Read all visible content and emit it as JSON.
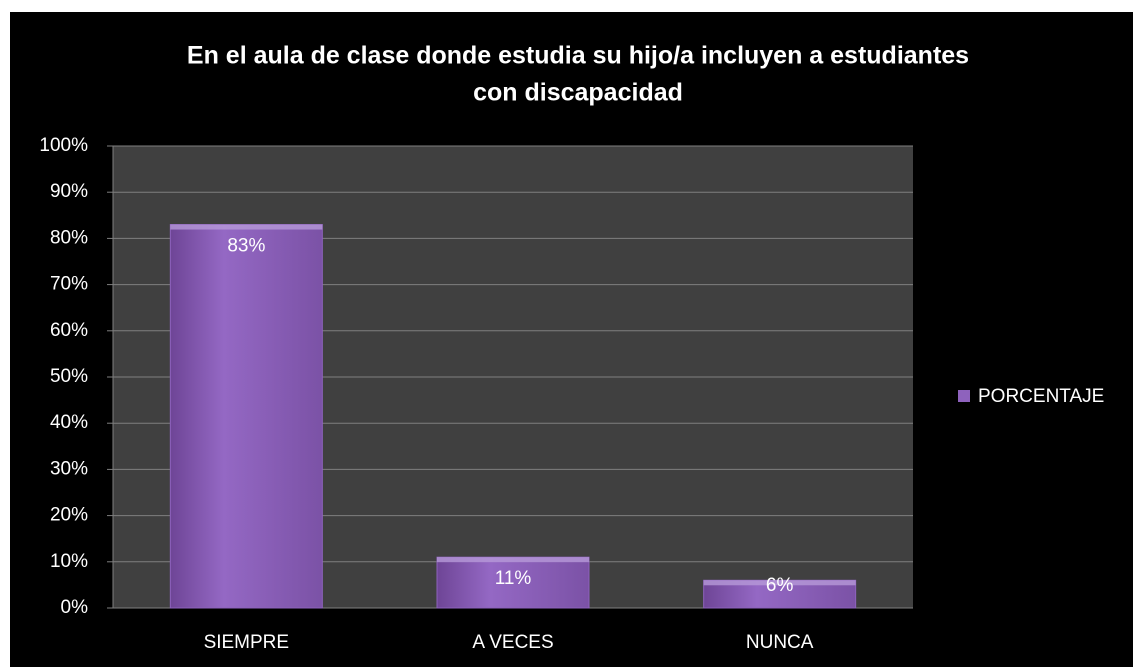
{
  "chart_data": {
    "type": "bar",
    "title": [
      "En el aula de clase donde estudia su hijo/a incluyen a estudiantes",
      "con discapacidad"
    ],
    "categories": [
      "SIEMPRE",
      "A VECES",
      "NUNCA"
    ],
    "series": [
      {
        "name": "PORCENTAJE",
        "color": "#8e62bd",
        "values": [
          83,
          11,
          6
        ],
        "value_labels": [
          "83%",
          "11%",
          "6%"
        ]
      }
    ],
    "ylim": [
      0,
      100
    ],
    "yticks": [
      {
        "value": 0,
        "label": "0%"
      },
      {
        "value": 10,
        "label": "10%"
      },
      {
        "value": 20,
        "label": "20%"
      },
      {
        "value": 30,
        "label": "30%"
      },
      {
        "value": 40,
        "label": "40%"
      },
      {
        "value": 50,
        "label": "50%"
      },
      {
        "value": 60,
        "label": "60%"
      },
      {
        "value": 70,
        "label": "70%"
      },
      {
        "value": 80,
        "label": "80%"
      },
      {
        "value": 90,
        "label": "90%"
      },
      {
        "value": 100,
        "label": "100%"
      }
    ],
    "grid": true,
    "legend": "right"
  }
}
